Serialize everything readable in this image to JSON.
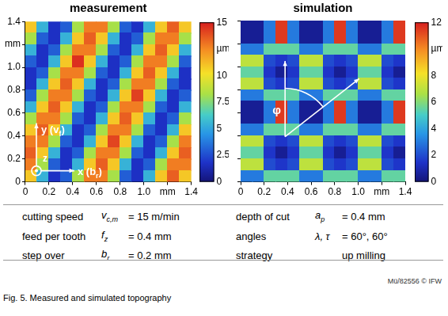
{
  "chart_data": [
    {
      "type": "heatmap",
      "title": "measurement",
      "x": [
        0.05,
        0.15,
        0.25,
        0.35,
        0.45,
        0.55,
        0.65,
        0.75,
        0.85,
        0.95,
        1.05,
        1.15,
        1.25,
        1.35
      ],
      "y": [
        1.35,
        1.25,
        1.15,
        1.05,
        0.95,
        0.85,
        0.75,
        0.65,
        0.55,
        0.45,
        0.35,
        0.25,
        0.15,
        0.05
      ],
      "z": [
        [
          10.9,
          5.4,
          1.7,
          3.0,
          8.2,
          12.8,
          12.8,
          8.2,
          3.0,
          1.7,
          5.4,
          10.9,
          13.5,
          10.9
        ],
        [
          8.2,
          3.0,
          1.7,
          5.4,
          10.9,
          13.5,
          10.9,
          5.4,
          1.7,
          3.0,
          8.2,
          12.8,
          12.8,
          8.2
        ],
        [
          5.4,
          1.7,
          3.0,
          8.2,
          12.8,
          12.8,
          8.2,
          3.0,
          1.7,
          5.4,
          10.9,
          13.5,
          10.9,
          5.4
        ],
        [
          3.0,
          1.7,
          5.4,
          10.9,
          14.6,
          10.9,
          5.4,
          1.7,
          3.0,
          8.2,
          12.8,
          12.8,
          8.2,
          3.0
        ],
        [
          1.7,
          3.0,
          8.2,
          12.8,
          12.8,
          8.2,
          3.0,
          1.7,
          5.4,
          10.9,
          13.5,
          10.9,
          5.4,
          1.7
        ],
        [
          1.7,
          5.4,
          10.9,
          13.5,
          10.9,
          5.4,
          1.7,
          3.0,
          8.2,
          12.8,
          12.8,
          8.2,
          3.0,
          1.7
        ],
        [
          3.0,
          8.2,
          12.8,
          12.8,
          8.2,
          3.0,
          1.7,
          5.4,
          10.9,
          14.2,
          10.9,
          5.4,
          1.7,
          3.0
        ],
        [
          5.4,
          10.9,
          13.5,
          10.9,
          5.4,
          1.7,
          3.0,
          8.2,
          12.8,
          12.8,
          8.2,
          3.0,
          1.7,
          5.4
        ],
        [
          8.2,
          12.8,
          12.8,
          8.2,
          3.0,
          1.7,
          5.4,
          10.9,
          13.5,
          10.9,
          5.4,
          1.7,
          3.0,
          8.2
        ],
        [
          10.9,
          13.5,
          10.9,
          5.4,
          1.7,
          3.0,
          8.2,
          12.8,
          12.8,
          8.2,
          3.0,
          1.7,
          5.4,
          10.9
        ],
        [
          12.8,
          12.8,
          8.2,
          3.0,
          1.7,
          5.4,
          10.9,
          14.1,
          10.9,
          5.4,
          1.7,
          3.0,
          8.2,
          12.8
        ],
        [
          13.5,
          10.9,
          5.4,
          1.7,
          3.0,
          8.2,
          12.8,
          12.8,
          8.2,
          3.0,
          1.7,
          5.4,
          10.9,
          13.5
        ],
        [
          12.8,
          8.2,
          3.0,
          1.7,
          5.4,
          10.9,
          13.5,
          10.9,
          5.4,
          1.7,
          3.0,
          8.2,
          12.8,
          12.8
        ],
        [
          10.9,
          5.4,
          1.7,
          3.0,
          8.2,
          12.8,
          12.8,
          8.2,
          3.0,
          1.7,
          5.4,
          10.9,
          13.5,
          10.9
        ]
      ],
      "xlim": [
        0,
        1.4
      ],
      "ylim": [
        0,
        1.4
      ],
      "xticks": [
        0,
        0.2,
        0.4,
        0.6,
        0.8,
        {
          "value": 1,
          "label": "1.0"
        },
        {
          "value": 1.2,
          "label": "mm"
        },
        1.4
      ],
      "yticks": [
        0,
        0.2,
        0.4,
        0.6,
        0.8,
        {
          "value": 1,
          "label": "1.0"
        },
        {
          "value": 1.2,
          "label": "mm"
        },
        1.4
      ],
      "grid": false,
      "colorbar": {
        "range": [
          0,
          15
        ],
        "ticks": [
          0,
          2.5,
          5,
          7.5,
          10,
          {
            "value": 12.5,
            "label": "µm"
          },
          15
        ]
      },
      "annotations": [
        {
          "text": "y (v",
          "sub": "f",
          "after": ")"
        },
        {
          "text": "x (b",
          "sub": "r",
          "after": ")"
        },
        {
          "text": "z"
        }
      ]
    },
    {
      "type": "heatmap",
      "title": "simulation",
      "x": [
        0.05,
        0.15,
        0.25,
        0.35,
        0.45,
        0.55,
        0.65,
        0.75,
        0.85,
        0.95,
        1.05,
        1.15,
        1.25,
        1.35
      ],
      "y": [
        1.35,
        1.25,
        1.15,
        1.05,
        0.95,
        0.85,
        0.75,
        0.65,
        0.55,
        0.45,
        0.35,
        0.25,
        0.15,
        0.05
      ],
      "z": [
        [
          0.5,
          0.5,
          3,
          11.5,
          3,
          0.5,
          0.5,
          3,
          11.5,
          3,
          0.5,
          0.5,
          3,
          11.5
        ],
        [
          0.5,
          0.5,
          3,
          11.5,
          3,
          0.5,
          0.5,
          3,
          11.5,
          3,
          0.5,
          0.5,
          3,
          11.5
        ],
        [
          3,
          3,
          5.5,
          5.5,
          5.5,
          3,
          3,
          5.5,
          5.5,
          5.5,
          3,
          3,
          5.5,
          5.5
        ],
        [
          7,
          7,
          2,
          1.5,
          2,
          7,
          7,
          2,
          1.5,
          2,
          7,
          7,
          2,
          1.5
        ],
        [
          5.5,
          5.5,
          1.5,
          0.5,
          1.5,
          5.5,
          5.5,
          1.5,
          0.5,
          1.5,
          5.5,
          5.5,
          1.5,
          0.5
        ],
        [
          7,
          7,
          2,
          1.5,
          2,
          7,
          7,
          2,
          1.5,
          2,
          7,
          7,
          2,
          1.5
        ],
        [
          3,
          3,
          5.5,
          5.5,
          5.5,
          3,
          3,
          5.5,
          5.5,
          5.5,
          3,
          3,
          5.5,
          5.5
        ],
        [
          0.5,
          0.5,
          3,
          11.5,
          3,
          0.5,
          0.5,
          3,
          11.5,
          3,
          0.5,
          0.5,
          3,
          11.5
        ],
        [
          0.5,
          0.5,
          3,
          11.5,
          3,
          0.5,
          0.5,
          3,
          11.5,
          3,
          0.5,
          0.5,
          3,
          11.5
        ],
        [
          3,
          3,
          5.5,
          5.5,
          5.5,
          3,
          3,
          5.5,
          5.5,
          5.5,
          3,
          3,
          5.5,
          5.5
        ],
        [
          7,
          7,
          2,
          1.5,
          2,
          7,
          7,
          2,
          1.5,
          2,
          7,
          7,
          2,
          1.5
        ],
        [
          5.5,
          5.5,
          1.5,
          0.5,
          1.5,
          5.5,
          5.5,
          1.5,
          0.5,
          1.5,
          5.5,
          5.5,
          1.5,
          0.5
        ],
        [
          7,
          7,
          2,
          1.5,
          2,
          7,
          7,
          2,
          1.5,
          2,
          7,
          7,
          2,
          1.5
        ],
        [
          3,
          3,
          5.5,
          5.5,
          5.5,
          3,
          3,
          5.5,
          5.5,
          5.5,
          3,
          3,
          5.5,
          5.5
        ]
      ],
      "xlim": [
        0,
        1.4
      ],
      "ylim": [
        0,
        1.4
      ],
      "xticks": [
        0,
        0.2,
        0.4,
        0.6,
        0.8,
        {
          "value": 1,
          "label": "1.0"
        },
        {
          "value": 1.2,
          "label": "mm"
        },
        1.4
      ],
      "yticks": [
        0,
        0.2,
        0.4,
        0.6,
        0.8,
        1,
        1.2,
        1.4
      ],
      "tick_labels": "x",
      "grid": false,
      "colorbar": {
        "range": [
          0,
          12
        ],
        "ticks": [
          0,
          2,
          4,
          6,
          8,
          {
            "value": 10,
            "label": "µm"
          },
          12
        ]
      },
      "annotations": [
        {
          "text": "φ"
        }
      ]
    }
  ],
  "parameters": {
    "rows": [
      [
        {
          "name": "cutting speed",
          "symbol": "v",
          "sub": "c,m",
          "value": "= 15 m/min"
        },
        {
          "name": "depth of cut",
          "symbol": "a",
          "sub": "p",
          "value": "= 0.4 mm"
        }
      ],
      [
        {
          "name": "feed per tooth",
          "symbol": "f",
          "sub": "z",
          "value": "= 0.4 mm"
        },
        {
          "name": "angles",
          "symbol": "λ, τ",
          "value": "= 60°, 60°"
        }
      ],
      [
        {
          "name": "step over",
          "symbol": "b",
          "sub": "r",
          "value": "= 0.2 mm"
        },
        {
          "name": "strategy",
          "value": "up milling"
        }
      ]
    ]
  },
  "credit": "Mü/82556 © IFW",
  "caption": "Fig. 5. Measured and simulated topography"
}
